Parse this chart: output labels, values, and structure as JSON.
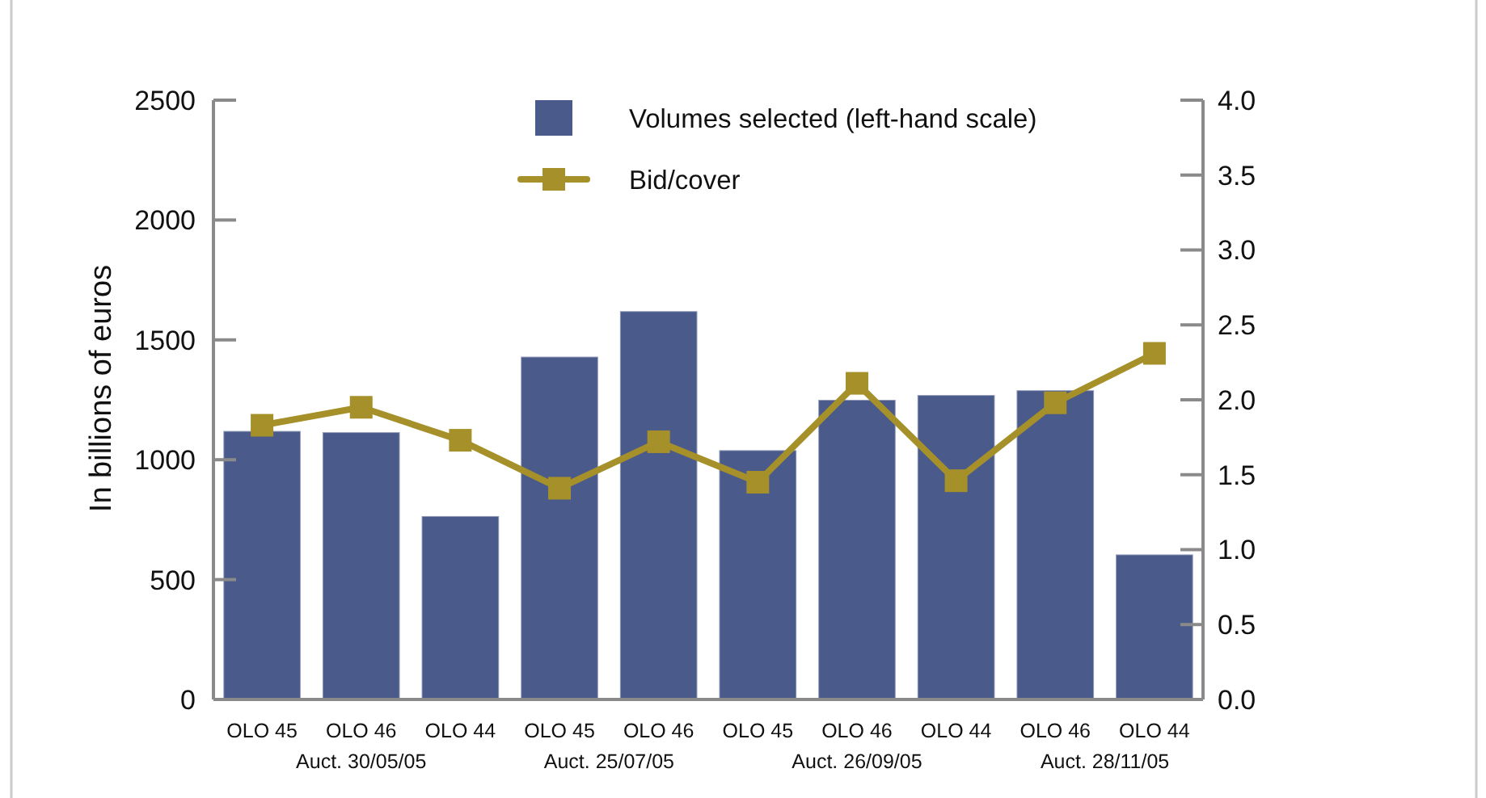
{
  "chart_data": {
    "type": "bar",
    "categories": [
      "OLO 45",
      "OLO 46",
      "OLO 44",
      "OLO 45",
      "OLO 46",
      "OLO 45",
      "OLO 46",
      "OLO 44",
      "OLO 46",
      "OLO 44"
    ],
    "series": [
      {
        "name": "Volumes selected (left-hand scale)",
        "color": "#4a5a8b",
        "values": [
          1120,
          1115,
          765,
          1430,
          1620,
          1040,
          1250,
          1270,
          1290,
          605
        ]
      },
      {
        "name": "Bid/cover",
        "type": "line",
        "axis": "y2",
        "color": "#a6902a",
        "values": [
          1.83,
          1.95,
          1.73,
          1.41,
          1.72,
          1.45,
          2.11,
          1.46,
          1.98,
          2.31
        ]
      }
    ],
    "ylabel": "In billions of euros",
    "ylim": [
      0,
      2500
    ],
    "yticks": [
      0,
      500,
      1000,
      1500,
      2000,
      2500
    ],
    "y2lim": [
      0,
      4
    ],
    "y2ticks": [
      {
        "value": 0,
        "label": "0.0"
      },
      0.5,
      {
        "value": 1,
        "label": "1.0"
      },
      1.5,
      {
        "value": 2,
        "label": "2.0"
      },
      2.5,
      {
        "value": 3,
        "label": "3.0"
      },
      3.5,
      {
        "value": 4,
        "label": "4.0"
      }
    ],
    "legend": "top",
    "marker": "square",
    "line_style": "solid",
    "annotations": [
      "Auct. 30/05/05",
      "Auct. 25/07/05",
      "Auct. 26/09/05",
      "Auct. 28/11/05"
    ]
  }
}
